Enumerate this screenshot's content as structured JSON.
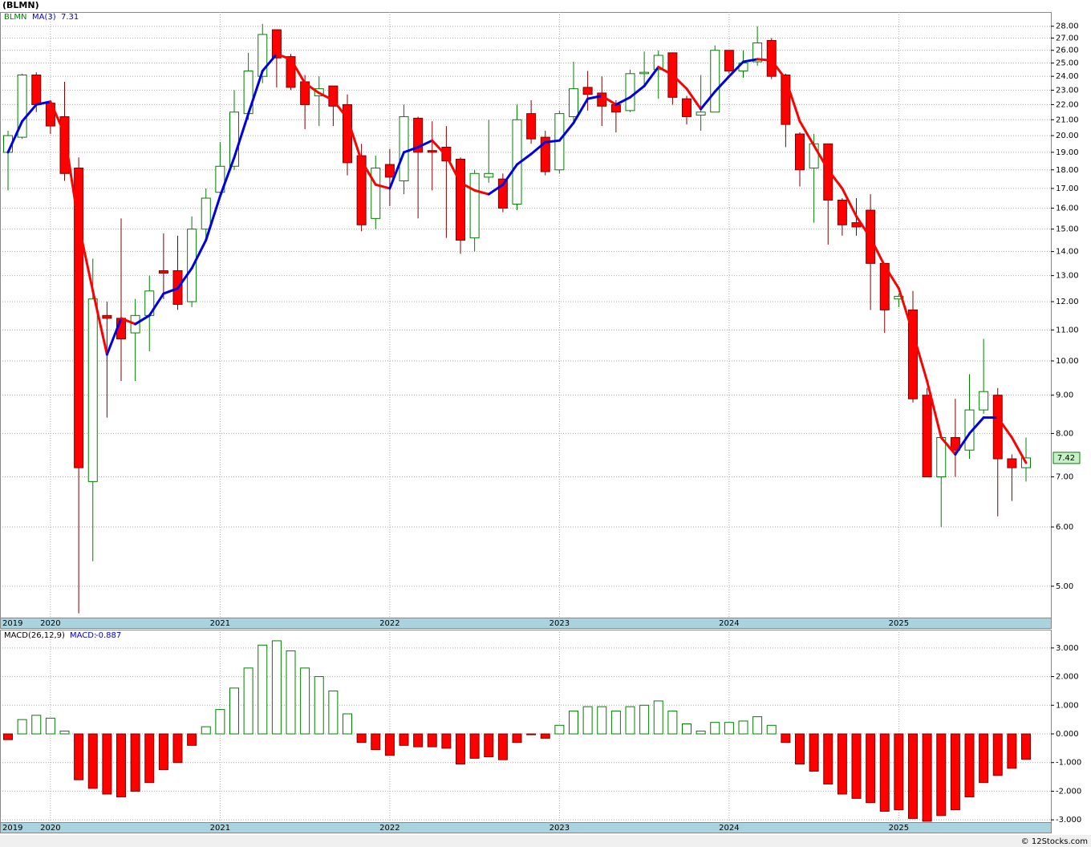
{
  "chart_data": [
    {
      "type": "candlestick",
      "title": "(BLMN)",
      "symbol": "BLMN",
      "categories": [
        "2019",
        null,
        null,
        "2020",
        null,
        null,
        null,
        null,
        null,
        null,
        null,
        null,
        null,
        null,
        null,
        "2021",
        null,
        null,
        null,
        null,
        null,
        null,
        null,
        null,
        null,
        null,
        null,
        "2022",
        null,
        null,
        null,
        null,
        null,
        null,
        null,
        null,
        null,
        null,
        null,
        "2023",
        null,
        null,
        null,
        null,
        null,
        null,
        null,
        null,
        null,
        null,
        null,
        "2024",
        null,
        null,
        null,
        null,
        null,
        null,
        null,
        null,
        null,
        null,
        null,
        "2025",
        null,
        null,
        null,
        null,
        null,
        null,
        null,
        null,
        null
      ],
      "open": [
        19.0,
        19.9,
        24.1,
        22.1,
        21.2,
        18.1,
        6.9,
        11.5,
        11.4,
        10.9,
        11.5,
        13.2,
        13.2,
        12.0,
        15.0,
        16.8,
        18.2,
        21.4,
        24.0,
        27.7,
        25.5,
        23.6,
        22.6,
        23.3,
        22.0,
        18.8,
        15.5,
        18.3,
        17.4,
        21.1,
        19.1,
        19.3,
        18.6,
        14.6,
        17.6,
        17.5,
        16.2,
        21.4,
        19.9,
        18.0,
        21.2,
        23.2,
        22.8,
        22.0,
        21.6,
        24.2,
        24.5,
        25.8,
        22.4,
        21.3,
        21.5,
        26.0,
        24.4,
        25.1,
        26.8,
        24.1,
        20.1,
        18.1,
        19.5,
        16.4,
        15.3,
        15.9,
        13.5,
        12.1,
        11.7,
        9.0,
        7.0,
        7.9,
        7.6,
        8.6,
        9.0,
        7.4,
        7.2
      ],
      "high": [
        20.3,
        24.2,
        24.3,
        22.3,
        23.6,
        18.7,
        13.7,
        12.0,
        15.5,
        12.1,
        13.0,
        14.8,
        14.7,
        15.6,
        17.0,
        19.6,
        23.0,
        25.8,
        28.2,
        27.7,
        25.7,
        24.1,
        24.0,
        23.3,
        22.7,
        19.5,
        18.8,
        19.2,
        22.0,
        21.2,
        20.9,
        20.6,
        18.7,
        18.0,
        21.0,
        17.8,
        22.0,
        22.3,
        20.3,
        21.6,
        25.1,
        24.4,
        24.0,
        22.3,
        24.5,
        25.9,
        26.0,
        25.8,
        22.6,
        24.1,
        26.4,
        26.0,
        26.0,
        28.0,
        27.0,
        24.2,
        20.2,
        20.1,
        19.5,
        16.5,
        16.5,
        16.7,
        13.5,
        12.3,
        12.4,
        9.2,
        8.0,
        8.9,
        9.6,
        10.7,
        9.2,
        7.5,
        7.9
      ],
      "low": [
        16.9,
        19.8,
        21.5,
        20.1,
        17.4,
        4.6,
        5.4,
        8.4,
        9.4,
        9.4,
        10.3,
        12.1,
        11.7,
        11.8,
        14.5,
        16.5,
        18.0,
        21.0,
        23.5,
        23.2,
        23.0,
        20.4,
        20.6,
        20.6,
        17.7,
        14.9,
        15.0,
        16.1,
        16.7,
        15.5,
        16.9,
        14.6,
        13.9,
        14.0,
        17.3,
        15.8,
        15.9,
        19.5,
        17.7,
        17.8,
        20.7,
        21.6,
        20.6,
        20.2,
        21.5,
        23.3,
        22.4,
        22.0,
        20.7,
        20.3,
        21.5,
        24.2,
        23.9,
        24.8,
        23.8,
        19.3,
        17.1,
        15.3,
        14.3,
        14.7,
        14.7,
        11.7,
        10.9,
        11.8,
        8.8,
        7.0,
        6.0,
        7.0,
        7.4,
        8.5,
        6.2,
        6.5,
        6.9
      ],
      "close": [
        20.0,
        24.1,
        22.0,
        20.6,
        17.8,
        7.2,
        12.1,
        11.4,
        10.7,
        11.5,
        12.4,
        13.1,
        11.9,
        15.0,
        16.5,
        18.2,
        21.5,
        24.4,
        27.3,
        25.4,
        23.2,
        22.0,
        23.1,
        21.9,
        18.4,
        15.2,
        18.1,
        17.6,
        21.2,
        19.0,
        19.0,
        18.5,
        14.5,
        17.8,
        17.8,
        16.0,
        21.0,
        19.8,
        17.9,
        21.4,
        23.1,
        22.7,
        21.9,
        21.5,
        24.2,
        24.3,
        25.6,
        22.5,
        21.2,
        21.5,
        26.0,
        24.4,
        25.0,
        26.6,
        24.0,
        20.7,
        18.0,
        19.5,
        16.4,
        15.2,
        15.1,
        13.5,
        11.7,
        12.2,
        8.9,
        7.0,
        7.9,
        7.6,
        8.6,
        9.1,
        7.4,
        7.2,
        7.42
      ],
      "up_color": "#008000",
      "down_color": "#ff0000",
      "ma": {
        "name": "MA(3)",
        "up_color": "#0000e0",
        "down_color": "#ff0000",
        "values": [
          19.0,
          20.9,
          22.0,
          22.2,
          20.1,
          15.2,
          12.4,
          10.2,
          11.4,
          11.2,
          11.5,
          12.3,
          12.5,
          13.3,
          14.5,
          16.6,
          18.7,
          21.4,
          24.4,
          25.7,
          25.3,
          23.5,
          22.8,
          22.3,
          21.1,
          18.5,
          17.2,
          17.0,
          19.0,
          19.3,
          19.7,
          18.8,
          17.3,
          16.9,
          16.7,
          17.2,
          18.3,
          18.9,
          19.6,
          19.7,
          20.8,
          22.4,
          22.6,
          22.0,
          22.5,
          23.3,
          24.7,
          24.1,
          23.1,
          21.7,
          22.9,
          24.0,
          25.1,
          25.3,
          25.2,
          23.8,
          20.9,
          19.4,
          18.0,
          17.0,
          15.6,
          14.6,
          13.4,
          12.5,
          10.9,
          9.4,
          7.9,
          7.5,
          8.0,
          8.4,
          8.4,
          7.9,
          7.31
        ]
      },
      "log_scale": true,
      "grid": true,
      "ylim": [
        4.54,
        29.25
      ],
      "yticks": [
        {
          "value": 5,
          "label": "5.00"
        },
        {
          "value": 6,
          "label": "6.00"
        },
        {
          "value": 7,
          "label": "7.00"
        },
        {
          "value": 8,
          "label": "8.00"
        },
        {
          "value": 9,
          "label": "9.00"
        },
        {
          "value": 10,
          "label": "10.00"
        },
        {
          "value": 11,
          "label": "11.00"
        },
        {
          "value": 12,
          "label": "12.00"
        },
        {
          "value": 13,
          "label": "13.00"
        },
        {
          "value": 14,
          "label": "14.00"
        },
        {
          "value": 15,
          "label": "15.00"
        },
        {
          "value": 16,
          "label": "16.00"
        },
        {
          "value": 17,
          "label": "17.00"
        },
        {
          "value": 18,
          "label": "18.00"
        },
        {
          "value": 19,
          "label": "19.00"
        },
        {
          "value": 20,
          "label": "20.00"
        },
        {
          "value": 21,
          "label": "21.00"
        },
        {
          "value": 22,
          "label": "22.00"
        },
        {
          "value": 23,
          "label": "23.00"
        },
        {
          "value": 24,
          "label": "24.00"
        },
        {
          "value": 25,
          "label": "25.00"
        },
        {
          "value": 26,
          "label": "26.00"
        },
        {
          "value": 27,
          "label": "27.00"
        },
        {
          "value": 28,
          "label": "28.00"
        }
      ]
    },
    {
      "type": "bar",
      "title": "MACD(26,12,9)",
      "value_name": "MACD:",
      "categories": [
        "2019",
        null,
        null,
        "2020",
        null,
        null,
        null,
        null,
        null,
        null,
        null,
        null,
        null,
        null,
        null,
        "2021",
        null,
        null,
        null,
        null,
        null,
        null,
        null,
        null,
        null,
        null,
        null,
        "2022",
        null,
        null,
        null,
        null,
        null,
        null,
        null,
        null,
        null,
        null,
        null,
        "2023",
        null,
        null,
        null,
        null,
        null,
        null,
        null,
        null,
        null,
        null,
        null,
        "2024",
        null,
        null,
        null,
        null,
        null,
        null,
        null,
        null,
        null,
        null,
        null,
        "2025",
        null,
        null,
        null,
        null,
        null,
        null,
        null,
        null,
        null
      ],
      "values": [
        -0.2,
        0.5,
        0.65,
        0.55,
        0.1,
        -1.6,
        -1.9,
        -2.1,
        -2.2,
        -2.0,
        -1.7,
        -1.25,
        -1.0,
        -0.4,
        0.25,
        0.85,
        1.6,
        2.3,
        3.1,
        3.25,
        2.9,
        2.3,
        2.0,
        1.5,
        0.7,
        -0.3,
        -0.55,
        -0.75,
        -0.4,
        -0.45,
        -0.45,
        -0.5,
        -1.05,
        -0.85,
        -0.8,
        -0.9,
        -0.3,
        -0.03,
        -0.15,
        0.3,
        0.8,
        0.95,
        0.95,
        0.8,
        0.95,
        1.0,
        1.15,
        0.8,
        0.35,
        0.1,
        0.4,
        0.4,
        0.45,
        0.6,
        0.3,
        -0.3,
        -1.05,
        -1.3,
        -1.75,
        -2.1,
        -2.25,
        -2.4,
        -2.7,
        -2.65,
        -2.95,
        -3.05,
        -2.85,
        -2.65,
        -2.2,
        -1.7,
        -1.45,
        -1.2,
        -0.887
      ],
      "up_color": "#008000",
      "down_color": "#ff0000",
      "grid": true,
      "ylim": [
        -3.08,
        3.64
      ],
      "yticks": [
        {
          "value": 3,
          "label": "3.000"
        },
        {
          "value": 2,
          "label": "2.000"
        },
        {
          "value": 1,
          "label": "1.000"
        },
        {
          "value": 0,
          "label": "0.000"
        },
        {
          "value": -1,
          "label": "-1.000"
        },
        {
          "value": -2,
          "label": "-2.000"
        },
        {
          "value": -3,
          "label": "-3.000"
        }
      ]
    }
  ],
  "credit": "© 12Stocks.com"
}
